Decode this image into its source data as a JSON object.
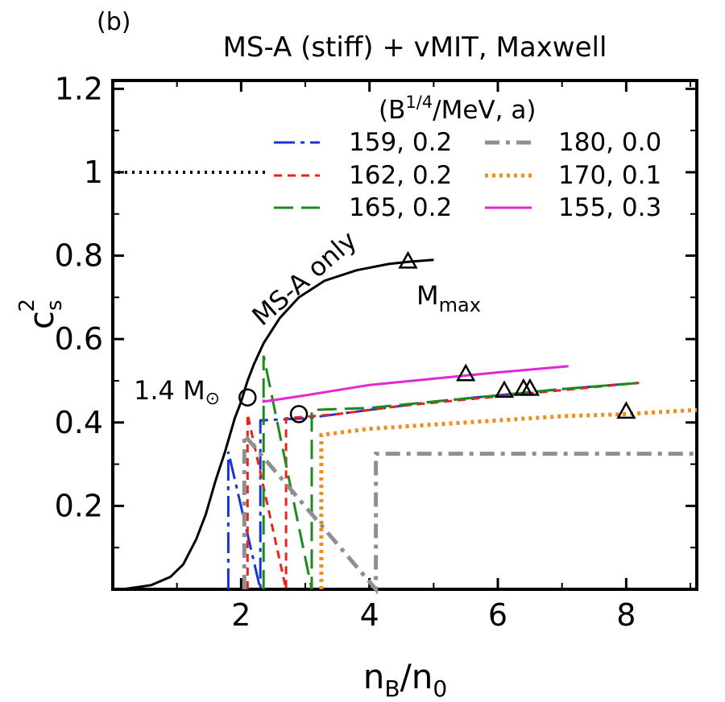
{
  "chart_data": {
    "type": "line",
    "panel_label": "(b)",
    "title": "MS-A (stiff) + vMIT, Maxwell",
    "xlabel_main": "n",
    "xlabel_sub": "B",
    "xlabel_mid": "/n",
    "xlabel_sub2": "0",
    "ylabel_main": "c",
    "ylabel_sup": "2",
    "ylabel_sub": "s",
    "xlim": [
      0,
      9.1
    ],
    "ylim": [
      0,
      1.22
    ],
    "xticks": [
      2,
      4,
      6,
      8
    ],
    "yticks": [
      0.2,
      0.4,
      0.6,
      0.8,
      1,
      1.2
    ],
    "ytick_labels": [
      "0.2",
      "0.4",
      "0.6",
      "0.8",
      "1",
      "1.2"
    ],
    "xtick_labels": [
      "2",
      "4",
      "6",
      "8"
    ],
    "legend_title_pre": "(B",
    "legend_title_sup": "1/4",
    "legend_title_post": "/MeV, a)",
    "causal_limit": {
      "y": 1.0,
      "x": [
        0,
        2.4
      ]
    },
    "baseline": {
      "label": "MS-A only",
      "color": "#000000",
      "x": [
        0.15,
        0.6,
        0.9,
        1.1,
        1.3,
        1.45,
        1.6,
        1.75,
        1.9,
        2.0,
        2.1,
        2.2,
        2.35,
        2.6,
        2.9,
        3.3,
        3.8,
        4.3,
        4.6,
        5.0
      ],
      "y": [
        0.0,
        0.01,
        0.03,
        0.06,
        0.12,
        0.18,
        0.26,
        0.33,
        0.41,
        0.45,
        0.5,
        0.54,
        0.59,
        0.65,
        0.7,
        0.74,
        0.765,
        0.78,
        0.785,
        0.79
      ]
    },
    "series": [
      {
        "name": "159, 0.2",
        "color": "#1a35d6",
        "dash": "26,7,5,7",
        "width": 3,
        "x": [
          1.8,
          1.8,
          2.3,
          2.3,
          3.0,
          4.0,
          5.0,
          6.0,
          7.0,
          8.2
        ],
        "y": [
          0,
          0.33,
          0,
          0.405,
          0.41,
          0.43,
          0.45,
          0.465,
          0.48,
          0.495
        ],
        "mmax": [
          6.5,
          0.48
        ]
      },
      {
        "name": "162, 0.2",
        "color": "#e8231c",
        "dash": "10,7",
        "width": 3,
        "x": [
          2.1,
          2.1,
          2.7,
          2.7,
          3.5,
          4.5,
          5.5,
          6.5,
          7.5,
          8.2
        ],
        "y": [
          0,
          0.42,
          0,
          0.41,
          0.42,
          0.44,
          0.455,
          0.47,
          0.485,
          0.495
        ],
        "mmax": [
          6.4,
          0.48
        ]
      },
      {
        "name": "165, 0.2",
        "color": "#1e8a1e",
        "dash": "24,10",
        "width": 3,
        "x": [
          2.35,
          2.35,
          3.1,
          3.1,
          4.0,
          5.0,
          6.0,
          7.0,
          8.2
        ],
        "y": [
          0,
          0.56,
          0,
          0.43,
          0.435,
          0.45,
          0.465,
          0.48,
          0.495
        ],
        "mmax": [
          6.1,
          0.475
        ]
      },
      {
        "name": "180, 0.0",
        "color": "#8f8f8f",
        "dash": "18,8,5,8",
        "width": 5,
        "x": [
          2.05,
          2.05,
          4.1,
          4.1,
          9.1
        ],
        "y": [
          0,
          0.37,
          0,
          0.325,
          0.325
        ],
        "mmax": null
      },
      {
        "name": "170, 0.1",
        "color": "#f28c1c",
        "dash": "4,5",
        "width": 5,
        "x": [
          3.25,
          3.25,
          4.0,
          5.0,
          6.0,
          7.0,
          8.0,
          9.1
        ],
        "y": [
          0,
          0.37,
          0.385,
          0.395,
          0.405,
          0.415,
          0.42,
          0.43
        ],
        "mmax": [
          8.0,
          0.425
        ]
      },
      {
        "name": "155, 0.3",
        "color": "#e326d6",
        "dash": "",
        "width": 3,
        "x": [
          2.35,
          2.35,
          3.0,
          4.0,
          5.0,
          6.0,
          7.1
        ],
        "y": [
          0.455,
          0.45,
          0.465,
          0.49,
          0.505,
          0.52,
          0.535
        ],
        "mmax": [
          5.5,
          0.515
        ]
      }
    ],
    "baseline_mmax": [
      4.6,
      0.785
    ],
    "annotations": {
      "mmax_label": "M",
      "mmax_sub": "max",
      "msun_label": "1.4 M",
      "msun_symbol": "⊙",
      "msun_circles": [
        [
          2.1,
          0.46
        ],
        [
          2.9,
          0.42
        ]
      ]
    }
  }
}
